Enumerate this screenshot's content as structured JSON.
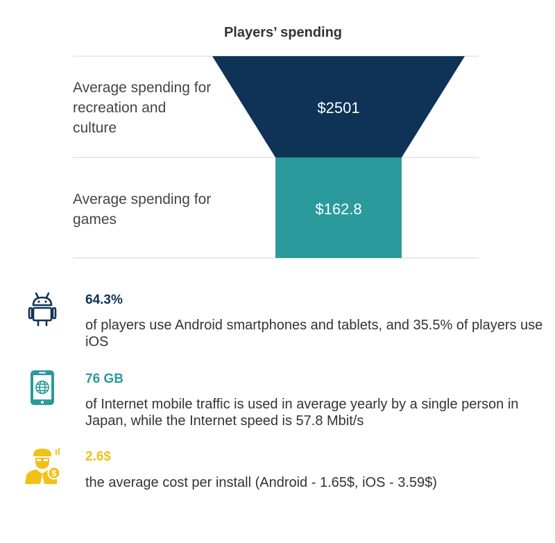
{
  "chart_data": {
    "type": "funnel",
    "title": "Players’ spending",
    "stages": [
      {
        "label": "Average spending for recreation and culture",
        "value": 2501,
        "display": "$2501",
        "color": "#0f3257"
      },
      {
        "label": "Average spending for games",
        "value": 162.8,
        "display": "$162.8",
        "color": "#2a9a9c"
      }
    ]
  },
  "stats": [
    {
      "icon": "android-icon",
      "value": "64.3%",
      "text": "of players use Android smartphones and tablets, and 35.5% of players use iOS",
      "color": "#0f3257"
    },
    {
      "icon": "smartphone-globe-icon",
      "value": "76 GB",
      "text": "of Internet mobile traffic is used in average yearly by a single person in Japan, while the Internet speed is 57.8 Mbit/s",
      "color": "#2a9a9c"
    },
    {
      "icon": "person-dollar-icon",
      "value": "2.6$",
      "text": "the average cost per install (Android - 1.65$, iOS - 3.59$)",
      "color": "#f2c118"
    }
  ]
}
